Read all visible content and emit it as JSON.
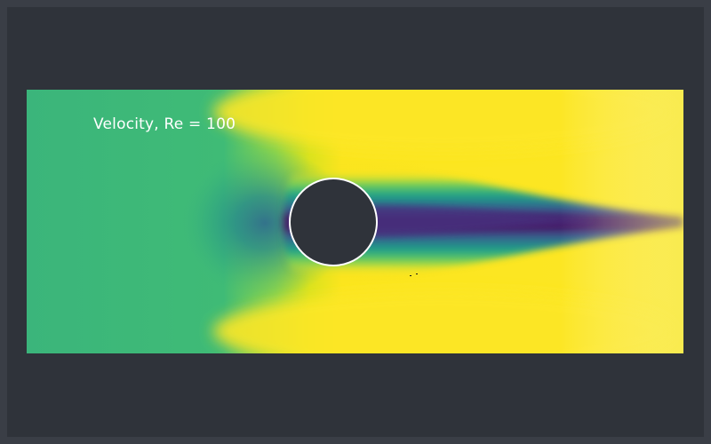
{
  "scene": {
    "title": "Velocity, Re = 100",
    "colormap": "viridis",
    "colors": {
      "background": "#2f333a",
      "outer_border": "#3a3e46",
      "obstacle_fill": "#2f333a",
      "obstacle_stroke": "#ffffff",
      "label_color": "#ffffff"
    }
  }
}
